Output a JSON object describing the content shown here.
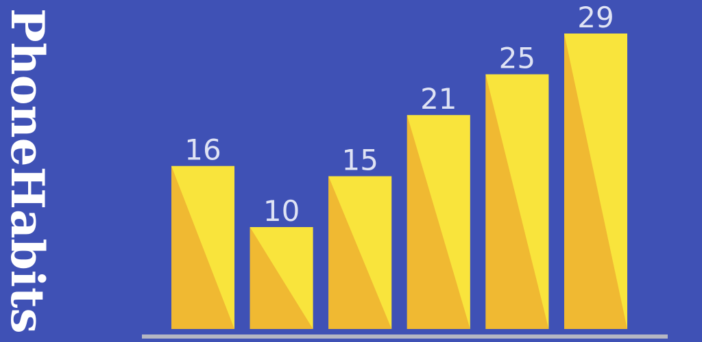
{
  "app": {
    "title": "PhoneHabits"
  },
  "colors": {
    "background": "#3f51b5",
    "bar_light": "#f9e43c",
    "bar_dark": "#f0b932",
    "label": "#dfe3f4",
    "baseline": "#b4b6c3"
  },
  "chart_data": {
    "type": "bar",
    "title": "",
    "xlabel": "",
    "ylabel": "",
    "categories": [
      "",
      "",
      "",
      "",
      "",
      ""
    ],
    "values": [
      16,
      10,
      15,
      21,
      25,
      29
    ],
    "data_labels": [
      "16",
      "10",
      "15",
      "21",
      "25",
      "29"
    ],
    "ylim": [
      0,
      29
    ],
    "grid": false,
    "legend": "none"
  }
}
